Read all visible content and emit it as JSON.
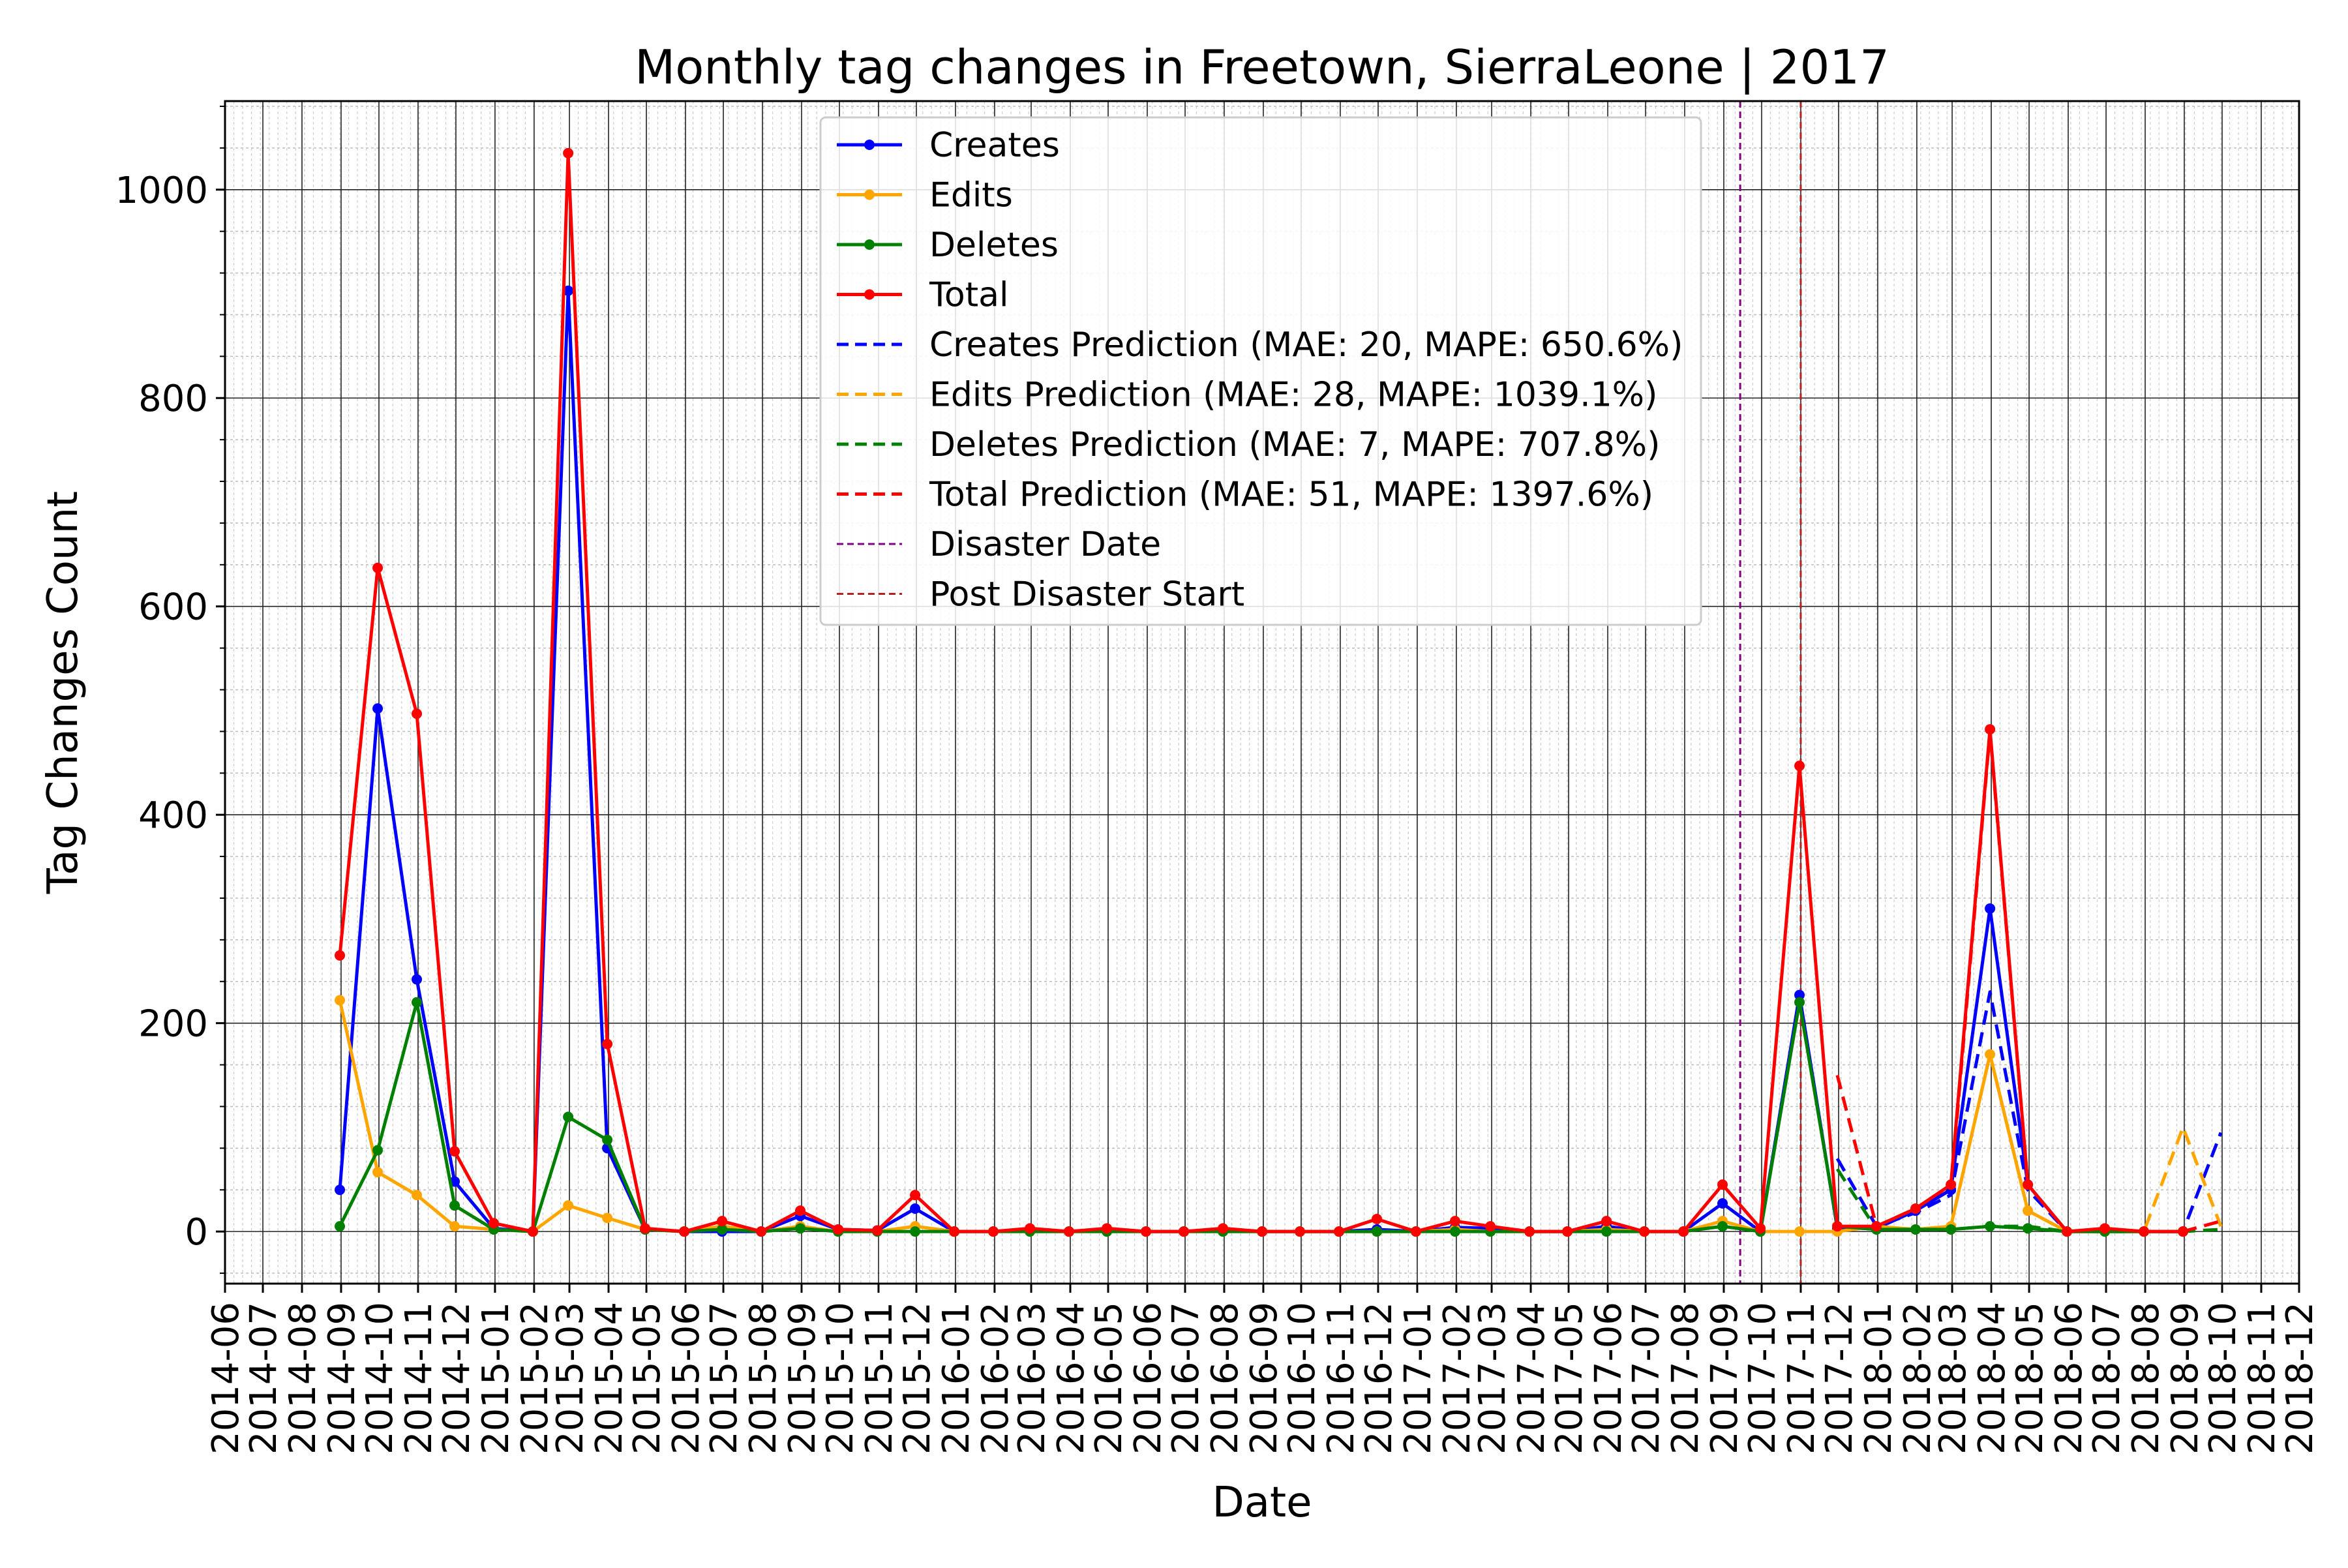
{
  "colors": {
    "creates": "#0000ff",
    "edits": "#ffa500",
    "deletes": "#008000",
    "total": "#ff0000",
    "disaster_line": "#800080",
    "post_disaster_line": "#b22222"
  },
  "chart_data": {
    "type": "line",
    "title": "Monthly tag changes in Freetown, SierraLeone | 2017",
    "xlabel": "Date",
    "ylabel": "Tag Changes Count",
    "ylim": [
      -50,
      1085
    ],
    "yticks": [
      0,
      200,
      400,
      600,
      800,
      1000
    ],
    "xlim": [
      "2014-06",
      "2018-12"
    ],
    "x_tick_labels": [
      "2014-06",
      "2014-07",
      "2014-08",
      "2014-09",
      "2014-10",
      "2014-11",
      "2014-12",
      "2015-01",
      "2015-02",
      "2015-03",
      "2015-04",
      "2015-05",
      "2015-06",
      "2015-07",
      "2015-08",
      "2015-09",
      "2015-10",
      "2015-11",
      "2015-12",
      "2016-01",
      "2016-02",
      "2016-03",
      "2016-04",
      "2016-05",
      "2016-06",
      "2016-07",
      "2016-08",
      "2016-09",
      "2016-10",
      "2016-11",
      "2016-12",
      "2017-01",
      "2017-02",
      "2017-03",
      "2017-04",
      "2017-05",
      "2017-06",
      "2017-07",
      "2017-08",
      "2017-09",
      "2017-10",
      "2017-11",
      "2017-12",
      "2018-01",
      "2018-02",
      "2018-03",
      "2018-04",
      "2018-05",
      "2018-06",
      "2018-07",
      "2018-08",
      "2018-09",
      "2018-10",
      "2018-11",
      "2018-12"
    ],
    "grid": true,
    "legend_position": "top-center",
    "x": [
      "2014-08-31",
      "2014-09-30",
      "2014-10-31",
      "2014-11-30",
      "2014-12-31",
      "2015-01-31",
      "2015-02-28",
      "2015-03-31",
      "2015-04-30",
      "2015-05-31",
      "2015-06-30",
      "2015-07-31",
      "2015-08-31",
      "2015-09-30",
      "2015-10-31",
      "2015-11-30",
      "2015-12-31",
      "2016-01-31",
      "2016-02-29",
      "2016-03-31",
      "2016-04-30",
      "2016-05-31",
      "2016-06-30",
      "2016-07-31",
      "2016-08-31",
      "2016-09-30",
      "2016-10-31",
      "2016-11-30",
      "2016-12-31",
      "2017-01-31",
      "2017-02-28",
      "2017-03-31",
      "2017-04-30",
      "2017-05-31",
      "2017-06-30",
      "2017-07-31",
      "2017-08-31",
      "2017-09-30",
      "2017-10-31",
      "2017-11-30",
      "2017-12-31",
      "2018-01-31",
      "2018-02-28",
      "2018-03-31",
      "2018-04-30",
      "2018-05-31",
      "2018-06-30",
      "2018-07-31",
      "2018-08-31"
    ],
    "series": [
      {
        "name": "Creates",
        "style": "solid-marker",
        "color": "#0000ff",
        "values": [
          40,
          502,
          242,
          48,
          3,
          0,
          903,
          80,
          2,
          0,
          0,
          0,
          15,
          2,
          1,
          22,
          0,
          0,
          2,
          0,
          2,
          0,
          0,
          2,
          0,
          0,
          0,
          2,
          0,
          4,
          3,
          0,
          0,
          5,
          0,
          0,
          27,
          0,
          227,
          3,
          3,
          20,
          40,
          310,
          45,
          0,
          2,
          0,
          0
        ]
      },
      {
        "name": "Edits",
        "style": "solid-marker",
        "color": "#ffa500",
        "values": [
          222,
          57,
          35,
          5,
          2,
          0,
          25,
          13,
          2,
          0,
          5,
          0,
          5,
          0,
          0,
          5,
          0,
          0,
          0,
          0,
          0,
          0,
          0,
          0,
          0,
          0,
          0,
          0,
          0,
          2,
          0,
          0,
          0,
          2,
          0,
          0,
          10,
          0,
          0,
          0,
          5,
          2,
          5,
          170,
          20,
          0,
          0,
          0,
          0
        ]
      },
      {
        "name": "Deletes",
        "style": "solid-marker",
        "color": "#008000",
        "values": [
          5,
          78,
          220,
          25,
          2,
          0,
          110,
          88,
          2,
          0,
          2,
          0,
          3,
          0,
          0,
          0,
          0,
          0,
          0,
          0,
          0,
          0,
          0,
          0,
          0,
          0,
          0,
          0,
          0,
          0,
          0,
          0,
          0,
          0,
          0,
          0,
          5,
          0,
          220,
          5,
          2,
          2,
          2,
          5,
          3,
          0,
          0,
          0,
          0
        ]
      },
      {
        "name": "Total",
        "style": "solid-marker",
        "color": "#ff0000",
        "values": [
          265,
          637,
          497,
          77,
          8,
          0,
          1035,
          180,
          3,
          0,
          10,
          0,
          20,
          2,
          1,
          35,
          0,
          0,
          3,
          0,
          3,
          0,
          0,
          3,
          0,
          0,
          0,
          12,
          0,
          10,
          5,
          0,
          0,
          10,
          0,
          0,
          45,
          3,
          447,
          5,
          5,
          22,
          45,
          482,
          45,
          0,
          3,
          0,
          0
        ]
      },
      {
        "name": "Creates Prediction (MAE: 20, MAPE: 650.6%)",
        "style": "dashed",
        "color": "#0000ff",
        "x": [
          "2017-10-31",
          "2017-11-30",
          "2017-12-31",
          "2018-01-31",
          "2018-02-28",
          "2018-03-31",
          "2018-04-30",
          "2018-05-31",
          "2018-06-30",
          "2018-07-31",
          "2018-08-31",
          "2018-09-30"
        ],
        "values": [
          null,
          70,
          5,
          18,
          35,
          230,
          40,
          0,
          0,
          0,
          0,
          95
        ]
      },
      {
        "name": "Edits Prediction (MAE: 28, MAPE: 1039.1%)",
        "style": "dashed",
        "color": "#ffa500",
        "x": [
          "2017-10-31",
          "2017-11-30",
          "2017-12-31",
          "2018-01-31",
          "2018-02-28",
          "2018-03-31",
          "2018-04-30",
          "2018-05-31",
          "2018-06-30",
          "2018-07-31",
          "2018-08-31",
          "2018-09-30"
        ],
        "values": [
          null,
          5,
          2,
          2,
          5,
          170,
          20,
          0,
          0,
          0,
          100,
          5
        ]
      },
      {
        "name": "Deletes Prediction (MAE: 7, MAPE: 707.8%)",
        "style": "dashed",
        "color": "#008000",
        "x": [
          "2017-10-31",
          "2017-11-30",
          "2017-12-31",
          "2018-01-31",
          "2018-02-28",
          "2018-03-31",
          "2018-04-30",
          "2018-05-31",
          "2018-06-30",
          "2018-07-31",
          "2018-08-31",
          "2018-09-30"
        ],
        "values": [
          null,
          60,
          2,
          2,
          2,
          5,
          5,
          0,
          0,
          0,
          0,
          2
        ]
      },
      {
        "name": "Total Prediction (MAE: 51, MAPE: 1397.6%)",
        "style": "dashed",
        "color": "#ff0000",
        "x": [
          "2017-10-31",
          "2017-11-30",
          "2017-12-31",
          "2018-01-31",
          "2018-02-28",
          "2018-03-31",
          "2018-04-30",
          "2018-05-31",
          "2018-06-30",
          "2018-07-31",
          "2018-08-31",
          "2018-09-30"
        ],
        "values": [
          null,
          150,
          5,
          22,
          40,
          480,
          45,
          0,
          0,
          0,
          0,
          10
        ]
      }
    ],
    "vlines": [
      {
        "name": "Disaster Date",
        "x": "2017-09-14",
        "color": "#800080"
      },
      {
        "name": "Post Disaster Start",
        "x": "2017-11-01",
        "color": "#b22222"
      }
    ],
    "legend": [
      {
        "label": "Creates",
        "color": "#0000ff",
        "style": "solid-marker"
      },
      {
        "label": "Edits",
        "color": "#ffa500",
        "style": "solid-marker"
      },
      {
        "label": "Deletes",
        "color": "#008000",
        "style": "solid-marker"
      },
      {
        "label": "Total",
        "color": "#ff0000",
        "style": "solid-marker"
      },
      {
        "label": "Creates Prediction (MAE: 20, MAPE: 650.6%)",
        "color": "#0000ff",
        "style": "dashed"
      },
      {
        "label": "Edits Prediction (MAE: 28, MAPE: 1039.1%)",
        "color": "#ffa500",
        "style": "dashed"
      },
      {
        "label": "Deletes Prediction (MAE: 7, MAPE: 707.8%)",
        "color": "#008000",
        "style": "dashed"
      },
      {
        "label": "Total Prediction (MAE: 51, MAPE: 1397.6%)",
        "color": "#ff0000",
        "style": "dashed"
      },
      {
        "label": "Disaster Date",
        "color": "#800080",
        "style": "thin-dashed"
      },
      {
        "label": "Post Disaster Start",
        "color": "#b22222",
        "style": "thin-dashed"
      }
    ]
  }
}
